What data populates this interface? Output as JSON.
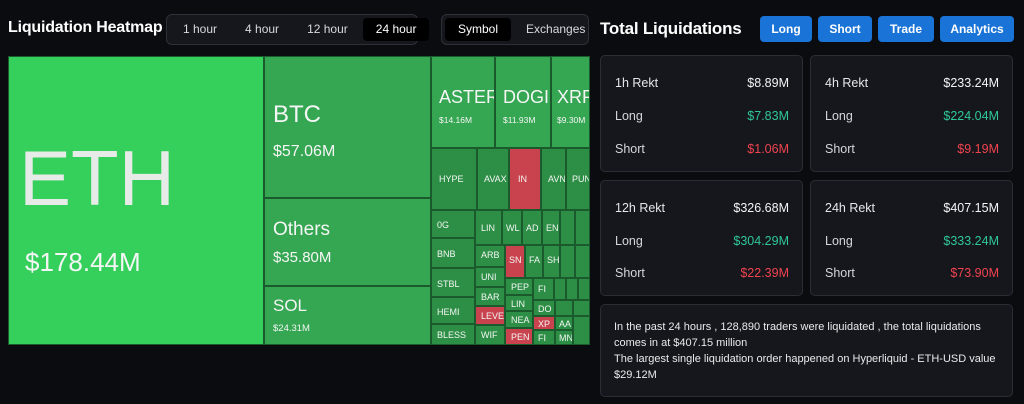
{
  "heatmap": {
    "title": "Liquidation Heatmap",
    "time_options": [
      "1 hour",
      "4 hour",
      "12 hour",
      "24 hour"
    ],
    "time_selected": "24 hour",
    "view_options": [
      "Symbol",
      "Exchanges"
    ],
    "view_selected": "Symbol",
    "tiles": {
      "eth": {
        "symbol": "ETH",
        "value": "$178.44M"
      },
      "btc": {
        "symbol": "BTC",
        "value": "$57.06M"
      },
      "others": {
        "symbol": "Others",
        "value": "$35.80M"
      },
      "sol": {
        "symbol": "SOL",
        "value": "$24.31M"
      },
      "aster": {
        "symbol": "ASTER",
        "value": "$14.16M"
      },
      "doge": {
        "symbol": "DOGI",
        "value": "$11.93M"
      },
      "xrp": {
        "symbol": "XRP",
        "value": "$9.30M"
      },
      "hype": "HYPE",
      "avax": "AVAX",
      "in": "IN",
      "avn": "AVN",
      "pun": "PUN",
      "og": "0G",
      "bnb": "BNB",
      "stbl": "STBL",
      "hemi": "HEMI",
      "bless": "BLESS",
      "lin": "LIN",
      "wl": "WL",
      "ad": "AD",
      "en": "EN",
      "arb": "ARB",
      "sn": "SN",
      "fa": "FA",
      "sh": "SH",
      "uni": "UNI",
      "bar": "BAR",
      "leve": "LEVE",
      "wif": "WIF",
      "pep": "PEP",
      "lin2": "LIN",
      "nea": "NEA",
      "pen": "PEN",
      "fi": "FI",
      "do": "DO",
      "xp": "XP",
      "fi2": "FI",
      "aa": "AA",
      "mn": "MN"
    }
  },
  "totals": {
    "title": "Total Liquidations",
    "buttons": [
      "Long",
      "Short",
      "Trade",
      "Analytics"
    ],
    "cards": [
      {
        "label": "1h Rekt",
        "total": "$8.89M",
        "long_label": "Long",
        "long": "$7.83M",
        "short_label": "Short",
        "short": "$1.06M"
      },
      {
        "label": "4h Rekt",
        "total": "$233.24M",
        "long_label": "Long",
        "long": "$224.04M",
        "short_label": "Short",
        "short": "$9.19M"
      },
      {
        "label": "12h Rekt",
        "total": "$326.68M",
        "long_label": "Long",
        "long": "$304.29M",
        "short_label": "Short",
        "short": "$22.39M"
      },
      {
        "label": "24h Rekt",
        "total": "$407.15M",
        "long_label": "Long",
        "long": "$333.24M",
        "short_label": "Short",
        "short": "$73.90M"
      }
    ],
    "summary_line1": "In the past 24 hours , 128,890 traders were liquidated , the total liquidations comes in at $407.15 million",
    "summary_line2": "The largest single liquidation order happened on Hyperliquid - ETH-USD value $29.12M"
  },
  "colors": {
    "long": "#2fc79b",
    "short": "#f0434f",
    "accent": "#1a73d6",
    "heat_green": "#35d05c",
    "heat_red": "#c9434e"
  }
}
